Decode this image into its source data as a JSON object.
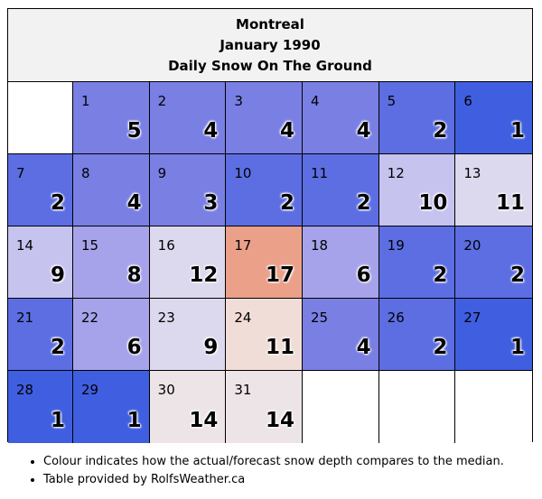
{
  "header": {
    "city": "Montreal",
    "month": "January 1990",
    "metric": "Daily Snow On The Ground"
  },
  "colors": {
    "blank": "#ffffff",
    "deep_blue": "#3f5ee0",
    "blue": "#5c6ee2",
    "mid_blue": "#7a7fe4",
    "light_blue": "#a6a3ea",
    "pale_lavender": "#c6c3ef",
    "very_pale": "#dcd9ee",
    "pale_pink": "#ede4e8",
    "light_salmon": "#f1ddd7",
    "salmon": "#eba08a"
  },
  "days": [
    {
      "day": "",
      "value": "",
      "color": "blank"
    },
    {
      "day": "1",
      "value": "5",
      "color": "mid_blue"
    },
    {
      "day": "2",
      "value": "4",
      "color": "mid_blue"
    },
    {
      "day": "3",
      "value": "4",
      "color": "mid_blue"
    },
    {
      "day": "4",
      "value": "4",
      "color": "mid_blue"
    },
    {
      "day": "5",
      "value": "2",
      "color": "blue"
    },
    {
      "day": "6",
      "value": "1",
      "color": "deep_blue"
    },
    {
      "day": "7",
      "value": "2",
      "color": "blue"
    },
    {
      "day": "8",
      "value": "4",
      "color": "mid_blue"
    },
    {
      "day": "9",
      "value": "3",
      "color": "mid_blue"
    },
    {
      "day": "10",
      "value": "2",
      "color": "blue"
    },
    {
      "day": "11",
      "value": "2",
      "color": "blue"
    },
    {
      "day": "12",
      "value": "10",
      "color": "pale_lavender"
    },
    {
      "day": "13",
      "value": "11",
      "color": "very_pale"
    },
    {
      "day": "14",
      "value": "9",
      "color": "pale_lavender"
    },
    {
      "day": "15",
      "value": "8",
      "color": "light_blue"
    },
    {
      "day": "16",
      "value": "12",
      "color": "very_pale"
    },
    {
      "day": "17",
      "value": "17",
      "color": "salmon"
    },
    {
      "day": "18",
      "value": "6",
      "color": "light_blue"
    },
    {
      "day": "19",
      "value": "2",
      "color": "blue"
    },
    {
      "day": "20",
      "value": "2",
      "color": "blue"
    },
    {
      "day": "21",
      "value": "2",
      "color": "blue"
    },
    {
      "day": "22",
      "value": "6",
      "color": "light_blue"
    },
    {
      "day": "23",
      "value": "9",
      "color": "very_pale"
    },
    {
      "day": "24",
      "value": "11",
      "color": "light_salmon"
    },
    {
      "day": "25",
      "value": "4",
      "color": "mid_blue"
    },
    {
      "day": "26",
      "value": "2",
      "color": "blue"
    },
    {
      "day": "27",
      "value": "1",
      "color": "deep_blue"
    },
    {
      "day": "28",
      "value": "1",
      "color": "deep_blue"
    },
    {
      "day": "29",
      "value": "1",
      "color": "deep_blue"
    },
    {
      "day": "30",
      "value": "14",
      "color": "pale_pink"
    },
    {
      "day": "31",
      "value": "14",
      "color": "pale_pink"
    },
    {
      "day": "",
      "value": "",
      "color": "blank"
    },
    {
      "day": "",
      "value": "",
      "color": "blank"
    },
    {
      "day": "",
      "value": "",
      "color": "blank"
    }
  ],
  "notes": [
    "Colour indicates how the actual/forecast snow depth compares to the median.",
    "Table provided by RolfsWeather.ca"
  ]
}
